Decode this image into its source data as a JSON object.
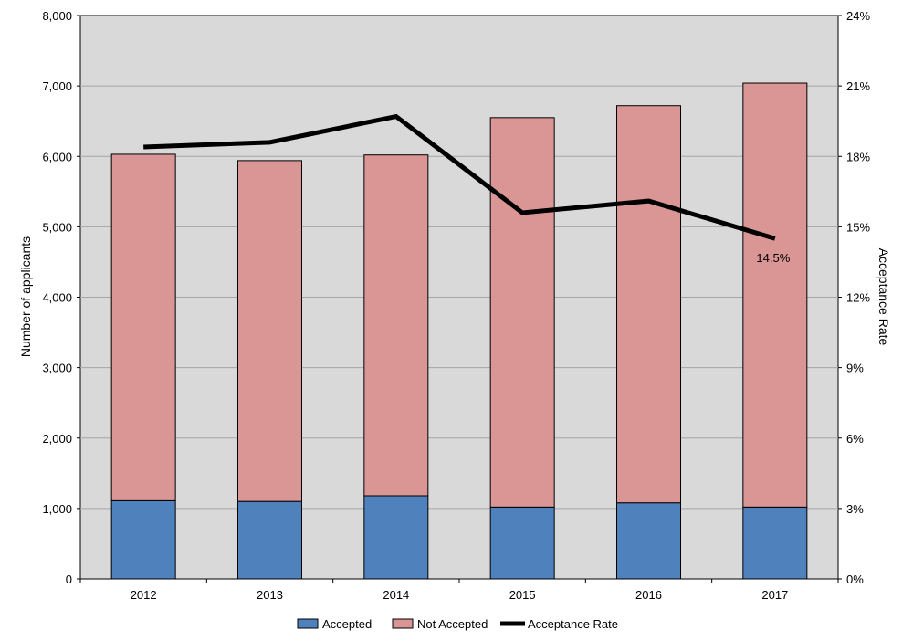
{
  "chart_data": {
    "type": "bar",
    "stacked": true,
    "categories": [
      "2012",
      "2013",
      "2014",
      "2015",
      "2016",
      "2017"
    ],
    "series": [
      {
        "name": "Accepted",
        "values": [
          1110,
          1100,
          1180,
          1020,
          1080,
          1020
        ],
        "color": "#4f81bd"
      },
      {
        "name": "Not Accepted",
        "values": [
          4920,
          4840,
          4840,
          5530,
          5640,
          6020
        ],
        "color": "#d99694"
      }
    ],
    "line_series": {
      "name": "Acceptance Rate",
      "values": [
        18.4,
        18.6,
        19.7,
        15.6,
        16.1,
        14.5
      ],
      "color": "#000000",
      "axis": "right"
    },
    "annotation": {
      "category": "2017",
      "text": "14.5%"
    },
    "ylabel": "Number of applicants",
    "y2label": "Acceptance Rate",
    "ylim": [
      0,
      8000
    ],
    "y2lim": [
      0,
      24
    ],
    "yticks": [
      "0",
      "1,000",
      "2,000",
      "3,000",
      "4,000",
      "5,000",
      "6,000",
      "7,000",
      "8,000"
    ],
    "y2ticks": [
      "0%",
      "3%",
      "6%",
      "9%",
      "12%",
      "15%",
      "18%",
      "21%",
      "24%"
    ],
    "grid": true,
    "plot_background": "#d9d9d9",
    "legend_position": "bottom"
  }
}
